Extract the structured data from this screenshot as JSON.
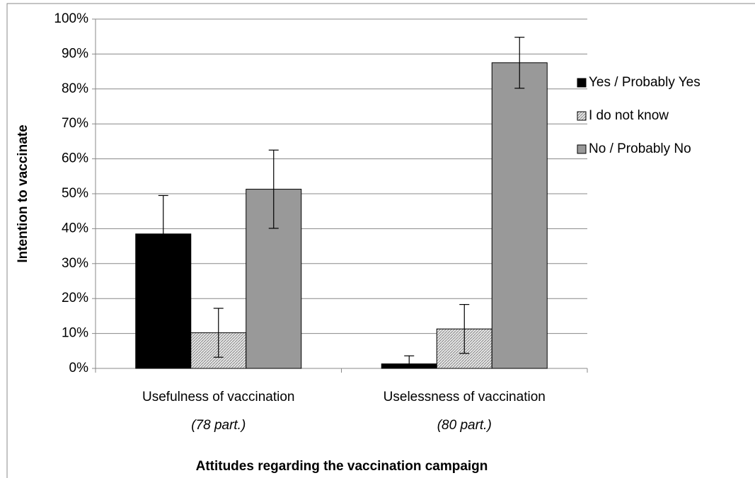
{
  "chart_data": {
    "type": "bar",
    "x_label": "Attitudes regarding the vaccination campaign",
    "y_label": "Intention to vaccinate",
    "categories": [
      "Usefulness of vaccination",
      "Uselessness of vaccination"
    ],
    "category_notes": [
      "(78 part.)",
      "(80 part.)"
    ],
    "series": [
      {
        "name": "Yes / Probably Yes",
        "color": "#000000",
        "values": [
          38.5,
          1.3
        ],
        "errors": [
          11,
          2.3
        ]
      },
      {
        "name": "I do not know",
        "color": "#d0d0d0",
        "pattern": "hatch",
        "values": [
          10.2,
          11.3
        ],
        "errors": [
          7,
          7
        ]
      },
      {
        "name": "No / Probably No",
        "color": "#999999",
        "values": [
          51.3,
          87.5
        ],
        "errors": [
          11.2,
          7.3
        ]
      }
    ],
    "ylim": [
      0,
      100
    ],
    "yticks": [
      {
        "value": 0,
        "label": "0%"
      },
      {
        "value": 10,
        "label": "10%"
      },
      {
        "value": 20,
        "label": "20%"
      },
      {
        "value": 30,
        "label": "30%"
      },
      {
        "value": 40,
        "label": "40%"
      },
      {
        "value": 50,
        "label": "50%"
      },
      {
        "value": 60,
        "label": "60%"
      },
      {
        "value": 70,
        "label": "70%"
      },
      {
        "value": 80,
        "label": "80%"
      },
      {
        "value": 90,
        "label": "90%"
      },
      {
        "value": 100,
        "label": "100%"
      }
    ],
    "grid": true,
    "legend": "right"
  }
}
